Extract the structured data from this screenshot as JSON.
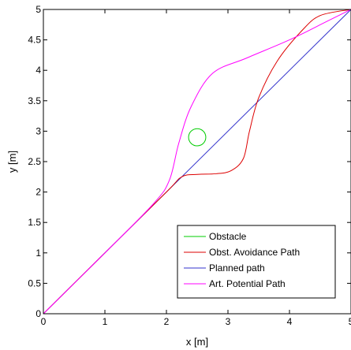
{
  "chart_data": {
    "type": "line",
    "title": "",
    "xlabel": "x [m]",
    "ylabel": "y [m]",
    "xlim": [
      0,
      5
    ],
    "ylim": [
      0,
      5
    ],
    "x_ticks": [
      0,
      1,
      2,
      3,
      4,
      5
    ],
    "y_ticks": [
      0,
      0.5,
      1,
      1.5,
      2,
      2.5,
      3,
      3.5,
      4,
      4.5,
      5
    ],
    "x_tick_labels": [
      "0",
      "1",
      "2",
      "3",
      "4",
      "5"
    ],
    "y_tick_labels": [
      "0",
      "0.5",
      "1",
      "1.5",
      "2",
      "2.5",
      "3",
      "3.5",
      "4",
      "4.5",
      "5"
    ],
    "grid": false,
    "legend_position": "bottom-right",
    "obstacle": {
      "center": [
        2.5,
        2.9
      ],
      "radius": 0.14
    },
    "series": [
      {
        "name": "Obstacle",
        "color": "#00cc00",
        "kind": "circle"
      },
      {
        "name": "Obst. Avoidance Path",
        "color": "#dd0000",
        "points": [
          [
            0,
            0
          ],
          [
            1,
            1
          ],
          [
            2,
            2
          ],
          [
            2.25,
            2.25
          ],
          [
            2.5,
            2.29
          ],
          [
            2.8,
            2.3
          ],
          [
            3.05,
            2.35
          ],
          [
            3.25,
            2.55
          ],
          [
            3.35,
            3.0
          ],
          [
            3.5,
            3.55
          ],
          [
            3.8,
            4.15
          ],
          [
            4.2,
            4.65
          ],
          [
            4.5,
            4.9
          ],
          [
            5,
            5
          ]
        ]
      },
      {
        "name": "Planned path",
        "color": "#3333cc",
        "points": [
          [
            0,
            0
          ],
          [
            5,
            5
          ]
        ]
      },
      {
        "name": "Art. Potential Path",
        "color": "#ff00ff",
        "points": [
          [
            0,
            0
          ],
          [
            1,
            1
          ],
          [
            1.8,
            1.82
          ],
          [
            2.05,
            2.2
          ],
          [
            2.2,
            2.8
          ],
          [
            2.4,
            3.4
          ],
          [
            2.75,
            3.95
          ],
          [
            3.3,
            4.2
          ],
          [
            4.0,
            4.5
          ],
          [
            4.6,
            4.8
          ],
          [
            5,
            5
          ]
        ]
      }
    ]
  }
}
